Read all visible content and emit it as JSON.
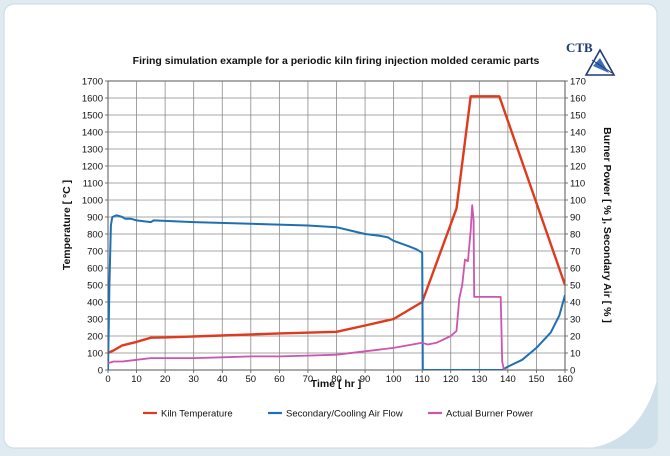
{
  "logo": {
    "text": "CTB"
  },
  "chart_data": {
    "type": "line",
    "title": "Firing simulation example for a periodic kiln firing injection molded ceramic parts",
    "xlabel": "Time  [ hr ]",
    "ylabel": "Temperature [ °C ]",
    "y2label": "Burner Power [ % ], Secondary Air [ % ]",
    "xlim": [
      0,
      160
    ],
    "ylim": [
      0,
      1700
    ],
    "y2lim": [
      0,
      170
    ],
    "xticks": [
      0,
      10,
      20,
      30,
      40,
      50,
      60,
      70,
      80,
      90,
      100,
      110,
      120,
      130,
      140,
      150,
      160
    ],
    "yticks": [
      0,
      100,
      200,
      300,
      400,
      500,
      600,
      700,
      800,
      900,
      1000,
      1100,
      1200,
      1300,
      1400,
      1500,
      1600,
      1700
    ],
    "y2ticks": [
      0,
      10,
      20,
      30,
      40,
      50,
      60,
      70,
      80,
      90,
      100,
      110,
      120,
      130,
      140,
      150,
      160,
      170
    ],
    "grid": true,
    "legend_position": "bottom",
    "series": [
      {
        "name": "Kiln Temperature",
        "axis": "left",
        "color": "#e03a1e",
        "points": [
          [
            0,
            100
          ],
          [
            2,
            115
          ],
          [
            5,
            145
          ],
          [
            10,
            165
          ],
          [
            15,
            190
          ],
          [
            20,
            192
          ],
          [
            40,
            203
          ],
          [
            60,
            215
          ],
          [
            80,
            225
          ],
          [
            90,
            262
          ],
          [
            100,
            300
          ],
          [
            110,
            400
          ],
          [
            122,
            950
          ],
          [
            127,
            1610
          ],
          [
            137,
            1610
          ],
          [
            160,
            500
          ]
        ]
      },
      {
        "name": "Secondary/Cooling Air Flow",
        "axis": "right",
        "color": "#1f6fb5",
        "points": [
          [
            0,
            0
          ],
          [
            0.5,
            50
          ],
          [
            1,
            85
          ],
          [
            1.5,
            90
          ],
          [
            3,
            91
          ],
          [
            5,
            90
          ],
          [
            6,
            89
          ],
          [
            8,
            89
          ],
          [
            10,
            88
          ],
          [
            15,
            87
          ],
          [
            16,
            88
          ],
          [
            30,
            87
          ],
          [
            50,
            86
          ],
          [
            70,
            85
          ],
          [
            80,
            84
          ],
          [
            85,
            82
          ],
          [
            90,
            80
          ],
          [
            95,
            79
          ],
          [
            98,
            78
          ],
          [
            100,
            76
          ],
          [
            105,
            73
          ],
          [
            108,
            71
          ],
          [
            110,
            69
          ],
          [
            110.2,
            0
          ],
          [
            138,
            0
          ],
          [
            140,
            2
          ],
          [
            145,
            6
          ],
          [
            150,
            13
          ],
          [
            155,
            22
          ],
          [
            158,
            32
          ],
          [
            160,
            44
          ]
        ]
      },
      {
        "name": "Actual Burner Power",
        "axis": "right",
        "color": "#cc55b0",
        "points": [
          [
            0,
            4
          ],
          [
            2,
            5
          ],
          [
            5,
            5
          ],
          [
            10,
            6
          ],
          [
            15,
            7
          ],
          [
            20,
            7
          ],
          [
            30,
            7
          ],
          [
            40,
            7.5
          ],
          [
            50,
            8
          ],
          [
            60,
            8
          ],
          [
            70,
            8.5
          ],
          [
            80,
            9
          ],
          [
            90,
            11
          ],
          [
            100,
            13
          ],
          [
            110,
            16
          ],
          [
            112,
            15
          ],
          [
            115,
            16
          ],
          [
            120,
            20
          ],
          [
            122,
            23
          ],
          [
            123,
            42
          ],
          [
            124,
            50
          ],
          [
            125,
            65
          ],
          [
            126,
            64
          ],
          [
            127,
            82
          ],
          [
            127.5,
            97
          ],
          [
            128,
            88
          ],
          [
            128.2,
            43
          ],
          [
            137,
            43
          ],
          [
            137.5,
            43
          ],
          [
            138,
            5
          ],
          [
            138.5,
            1
          ],
          [
            139,
            0
          ]
        ]
      }
    ]
  }
}
